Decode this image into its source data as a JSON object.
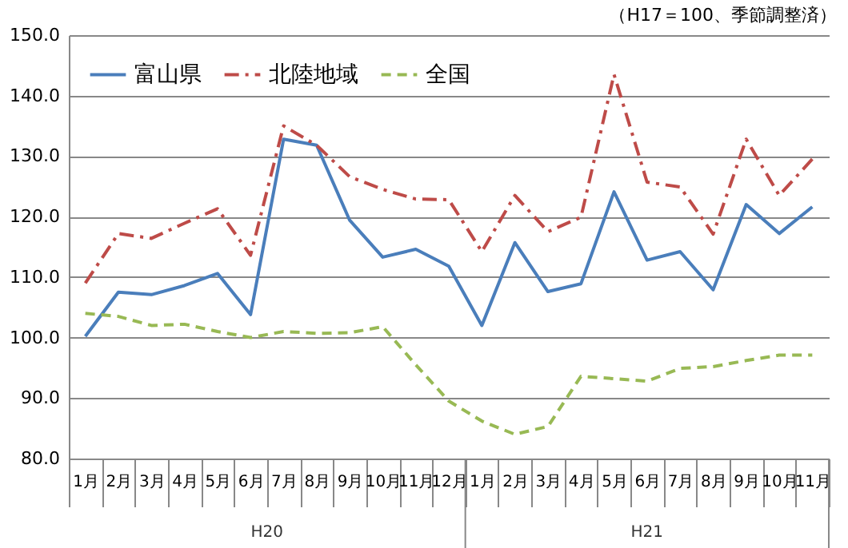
{
  "chart_data": {
    "type": "line",
    "categories": [
      "1月",
      "2月",
      "3月",
      "4月",
      "5月",
      "6月",
      "7月",
      "8月",
      "9月",
      "10月",
      "11月",
      "12月",
      "1月",
      "2月",
      "3月",
      "4月",
      "5月",
      "6月",
      "7月",
      "8月",
      "9月",
      "10月",
      "11月"
    ],
    "series": [
      {
        "name": "富山県",
        "color": "#4a7ebb",
        "line_style": "solid",
        "values": [
          100.2,
          107.5,
          107.1,
          108.6,
          110.6,
          103.8,
          132.8,
          131.8,
          119.4,
          113.3,
          114.6,
          111.8,
          102.0,
          115.7,
          107.6,
          108.9,
          124.1,
          112.8,
          114.2,
          107.9,
          122.0,
          117.2,
          121.6
        ]
      },
      {
        "name": "北陸地域",
        "color": "#be4b48",
        "line_style": "dashdot",
        "values": [
          109.0,
          117.2,
          116.4,
          118.9,
          121.3,
          113.6,
          135.0,
          131.8,
          126.6,
          124.5,
          122.9,
          122.8,
          114.2,
          123.5,
          117.5,
          119.9,
          143.5,
          125.7,
          124.9,
          117.1,
          132.8,
          123.5,
          129.5
        ]
      },
      {
        "name": "全国",
        "color": "#98b954",
        "line_style": "dashed",
        "values": [
          104.0,
          103.5,
          102.0,
          102.2,
          101.0,
          100.0,
          101.0,
          100.7,
          100.8,
          101.8,
          95.5,
          89.5,
          86.2,
          84.0,
          85.3,
          93.6,
          93.2,
          92.8,
          94.9,
          95.2,
          96.2,
          97.1,
          97.1
        ]
      }
    ],
    "ylim": [
      80,
      150
    ],
    "yticks": [
      {
        "value": 80,
        "label": "80.0"
      },
      {
        "value": 90,
        "label": "90.0"
      },
      {
        "value": 100,
        "label": "100.0"
      },
      {
        "value": 110,
        "label": "110.0"
      },
      {
        "value": 120,
        "label": "120.0"
      },
      {
        "value": 130,
        "label": "130.0"
      },
      {
        "value": 140,
        "label": "140.0"
      },
      {
        "value": 150,
        "label": "150.0"
      }
    ],
    "grid": "y",
    "legend": "top left",
    "marker": "none",
    "annotations": [
      "H20",
      "H21",
      "（H17＝100、季節調整済）"
    ]
  }
}
